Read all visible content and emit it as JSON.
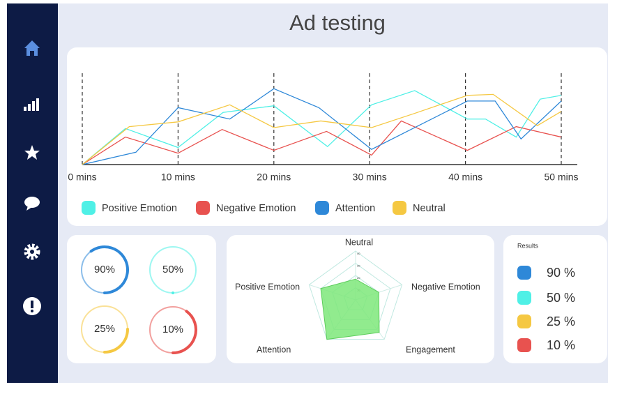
{
  "title": "Ad testing",
  "chart_data": [
    {
      "type": "line",
      "xlim": [
        0,
        50
      ],
      "xticks": [
        {
          "value": 0,
          "label": "0 mins"
        },
        {
          "value": 10,
          "label": "10 mins"
        },
        {
          "value": 20,
          "label": "20 mins"
        },
        {
          "value": 30,
          "label": "30 mins"
        },
        {
          "value": 40,
          "label": "40 mins"
        },
        {
          "value": 50,
          "label": "50 mins"
        }
      ],
      "ylim": [
        0,
        100
      ],
      "series": [
        {
          "name": "Positive Emotion",
          "color": "#4ff0e6",
          "x": [
            0,
            4.5,
            10,
            14.7,
            20,
            25.6,
            30.2,
            34.7,
            40.2,
            42.1,
            45.3,
            47.8,
            50
          ],
          "values": [
            0,
            38,
            18,
            55,
            62,
            19,
            63,
            78,
            48,
            48,
            29,
            69,
            73
          ]
        },
        {
          "name": "Negative Emotion",
          "color": "#e8524f",
          "x": [
            0,
            4.5,
            10,
            14.6,
            20,
            25.5,
            30.2,
            33.3,
            40.2,
            45.3,
            50
          ],
          "values": [
            0,
            29,
            12,
            37,
            15,
            35,
            10,
            46,
            15,
            40,
            29
          ]
        },
        {
          "name": "Attention",
          "color": "#2e88d8",
          "x": [
            0,
            5.6,
            10,
            15.4,
            20,
            24.7,
            30.2,
            34.7,
            40.2,
            43.1,
            45.8,
            50
          ],
          "values": [
            0,
            13,
            60,
            48,
            80,
            60,
            16,
            39,
            67,
            67,
            27,
            67
          ]
        },
        {
          "name": "Neutral",
          "color": "#f5c842",
          "x": [
            0,
            4.9,
            10,
            15.4,
            20,
            24.9,
            30.2,
            34.7,
            40.2,
            42.9,
            47.5,
            50
          ],
          "values": [
            0,
            40,
            45,
            63,
            39,
            46,
            39,
            54,
            73,
            74,
            41,
            56
          ]
        }
      ]
    },
    {
      "type": "radar",
      "categories": [
        "Neutral",
        "Negative Emotion",
        "Engagement",
        "Attention",
        "Positive Emotion"
      ],
      "values": [
        17,
        20,
        33,
        40,
        30
      ],
      "color": "#7ee87a",
      "rlim": [
        0,
        40
      ],
      "rticks": [
        10,
        20,
        30,
        40
      ]
    }
  ],
  "gauges": {
    "values": [
      90,
      50,
      25,
      10
    ],
    "value_labels": [
      "90%",
      "50%",
      "25%",
      "10%"
    ],
    "colors": [
      "#2e88d8",
      "#4ff0e6",
      "#f5c842",
      "#e8524f"
    ]
  },
  "results": {
    "title": "Results",
    "values": [
      90,
      50,
      25,
      10
    ],
    "value_labels": [
      "90 %",
      "50 %",
      "25 %",
      "10 %"
    ],
    "colors": [
      "#2e88d8",
      "#4ff0e6",
      "#f5c842",
      "#e8524f"
    ]
  }
}
